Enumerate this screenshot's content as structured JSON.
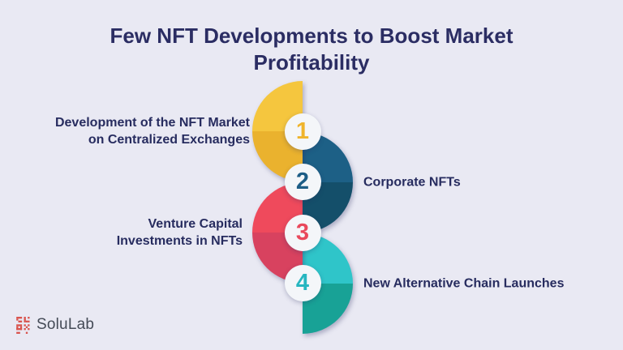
{
  "canvas": {
    "background": "#e9e9f3"
  },
  "title": {
    "text": "Few NFT Developments to Boost Market Profitability",
    "color": "#2b2d63"
  },
  "label_color": "#272c5f",
  "number_circle_fill": "#f4f6f9",
  "steps": [
    {
      "number": "1",
      "side": "left",
      "label_lines": [
        "Development of the NFT Market",
        "on Centralized Exchanges"
      ],
      "arc_color_top": "#f5c63e",
      "arc_color_bottom": "#eab22e",
      "number_color": "#efb42c"
    },
    {
      "number": "2",
      "side": "right",
      "label_lines": [
        "Corporate NFTs"
      ],
      "arc_color_top": "#1d6086",
      "arc_color_bottom": "#144f6a",
      "number_color": "#1d5d86"
    },
    {
      "number": "3",
      "side": "left",
      "label_lines": [
        "Venture Capital",
        "Investments in NFTs"
      ],
      "arc_color_top": "#ef4a5c",
      "arc_color_bottom": "#d8425f",
      "number_color": "#e9495c"
    },
    {
      "number": "4",
      "side": "right",
      "label_lines": [
        "New Alternative Chain Launches"
      ],
      "arc_color_top": "#2fc5c9",
      "arc_color_bottom": "#18a296",
      "number_color": "#27b6c0"
    }
  ],
  "footer": {
    "brand": "SoluLab",
    "logo_color": "#d9544e",
    "text_color": "#454b57"
  }
}
